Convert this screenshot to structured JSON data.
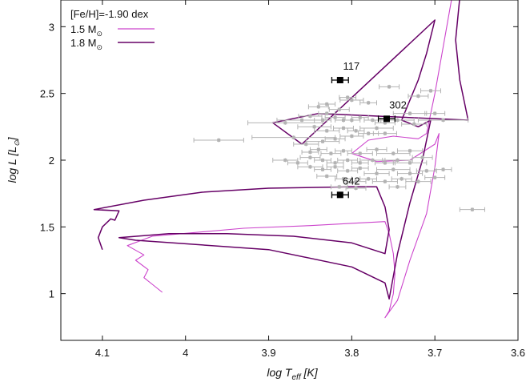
{
  "chart_data": {
    "type": "scatter",
    "title": "",
    "metallicity_label": "[Fe/H]=-1.90 dex",
    "xlabel": {
      "prefix": "log T",
      "sub": "eff",
      "suffix": " [K]"
    },
    "ylabel": {
      "text": "log L [L",
      "sun": "⊙",
      "close": "]"
    },
    "x_reversed": true,
    "xlim": [
      4.15,
      3.6
    ],
    "ylim": [
      0.65,
      3.2
    ],
    "x_ticks": [
      4.1,
      4.0,
      3.9,
      3.8,
      3.7,
      3.6
    ],
    "x_tick_labels": [
      "4.1",
      "4",
      "3.9",
      "3.8",
      "3.7",
      "3.6"
    ],
    "y_ticks": [
      1.0,
      1.5,
      2.0,
      2.5,
      3.0
    ],
    "y_tick_labels": [
      "1",
      "1.5",
      "2",
      "2.5",
      "3"
    ],
    "grid": false,
    "legend_position": "top-left",
    "colors": {
      "track_15": "#cc44cc",
      "track_18": "#660066",
      "sample": "#b3b3b3",
      "highlight": "#000000"
    },
    "series": [
      {
        "name": "1.5 M",
        "name_sub": "⊙",
        "kind": "line",
        "color": "#cc44cc",
        "points": [
          [
            4.028,
            1.01
          ],
          [
            4.04,
            1.07
          ],
          [
            4.05,
            1.12
          ],
          [
            4.045,
            1.18
          ],
          [
            4.06,
            1.25
          ],
          [
            4.05,
            1.29
          ],
          [
            4.07,
            1.36
          ],
          [
            4.04,
            1.43
          ],
          [
            3.93,
            1.49
          ],
          [
            3.85,
            1.51
          ],
          [
            3.79,
            1.53
          ],
          [
            3.76,
            1.54
          ],
          [
            3.755,
            1.45
          ],
          [
            3.75,
            1.3
          ],
          [
            3.748,
            1.15
          ],
          [
            3.75,
            1.0
          ],
          [
            3.755,
            0.87
          ],
          [
            3.76,
            0.82
          ],
          [
            3.745,
            0.95
          ],
          [
            3.73,
            1.25
          ],
          [
            3.71,
            1.6
          ],
          [
            3.7,
            1.95
          ],
          [
            3.695,
            2.2
          ],
          [
            3.7,
            2.12
          ],
          [
            3.73,
            2.0
          ],
          [
            3.77,
            1.99
          ],
          [
            3.8,
            2.05
          ],
          [
            3.78,
            2.15
          ],
          [
            3.75,
            2.18
          ],
          [
            3.72,
            2.16
          ],
          [
            3.71,
            2.2
          ],
          [
            3.7,
            2.5
          ],
          [
            3.69,
            2.85
          ],
          [
            3.68,
            3.2
          ]
        ]
      },
      {
        "name": "1.8 M",
        "name_sub": "⊙",
        "kind": "line",
        "color": "#660066",
        "points": [
          [
            4.1,
            1.33
          ],
          [
            4.105,
            1.42
          ],
          [
            4.1,
            1.5
          ],
          [
            4.09,
            1.56
          ],
          [
            4.085,
            1.55
          ],
          [
            4.08,
            1.62
          ],
          [
            4.11,
            1.63
          ],
          [
            4.05,
            1.7
          ],
          [
            3.98,
            1.76
          ],
          [
            3.9,
            1.79
          ],
          [
            3.8,
            1.8
          ],
          [
            3.77,
            1.8
          ],
          [
            3.76,
            1.65
          ],
          [
            3.755,
            1.48
          ],
          [
            3.76,
            1.3
          ],
          [
            3.8,
            1.38
          ],
          [
            3.87,
            1.43
          ],
          [
            3.95,
            1.45
          ],
          [
            4.02,
            1.45
          ],
          [
            4.08,
            1.42
          ],
          [
            4.06,
            1.4
          ],
          [
            3.9,
            1.33
          ],
          [
            3.8,
            1.2
          ],
          [
            3.76,
            1.08
          ],
          [
            3.755,
            0.96
          ],
          [
            3.745,
            1.3
          ],
          [
            3.73,
            1.68
          ],
          [
            3.715,
            2.0
          ],
          [
            3.705,
            2.3
          ],
          [
            3.72,
            2.25
          ],
          [
            3.74,
            2.3
          ],
          [
            3.73,
            2.45
          ],
          [
            3.72,
            2.6
          ],
          [
            3.71,
            2.8
          ],
          [
            3.7,
            3.05
          ],
          [
            3.86,
            2.12
          ],
          [
            3.895,
            2.28
          ],
          [
            3.84,
            2.35
          ],
          [
            3.66,
            2.3
          ],
          [
            3.67,
            2.6
          ],
          [
            3.675,
            2.9
          ],
          [
            3.67,
            3.22
          ]
        ]
      }
    ],
    "sample_points": [
      [
        3.84,
        2.4,
        0.012,
        0.015
      ],
      [
        3.83,
        2.42,
        0.01,
        0.015
      ],
      [
        3.805,
        2.47,
        0.01,
        0.015
      ],
      [
        3.8,
        2.45,
        0.014,
        0.015
      ],
      [
        3.78,
        2.43,
        0.01,
        0.015
      ],
      [
        3.815,
        2.38,
        0.012,
        0.015
      ],
      [
        3.83,
        2.35,
        0.01,
        0.015
      ],
      [
        3.85,
        2.33,
        0.014,
        0.015
      ],
      [
        3.86,
        2.3,
        0.03,
        0.015
      ],
      [
        3.88,
        2.28,
        0.045,
        0.015
      ],
      [
        3.835,
        2.3,
        0.01,
        0.015
      ],
      [
        3.82,
        2.32,
        0.012,
        0.015
      ],
      [
        3.81,
        2.3,
        0.01,
        0.015
      ],
      [
        3.8,
        2.3,
        0.01,
        0.015
      ],
      [
        3.79,
        2.32,
        0.01,
        0.015
      ],
      [
        3.775,
        2.3,
        0.01,
        0.015
      ],
      [
        3.76,
        2.28,
        0.012,
        0.015
      ],
      [
        3.745,
        2.3,
        0.02,
        0.015
      ],
      [
        3.845,
        2.25,
        0.02,
        0.015
      ],
      [
        3.83,
        2.22,
        0.015,
        0.015
      ],
      [
        3.81,
        2.24,
        0.012,
        0.015
      ],
      [
        3.795,
        2.22,
        0.01,
        0.015
      ],
      [
        3.78,
        2.2,
        0.012,
        0.015
      ],
      [
        3.77,
        2.24,
        0.02,
        0.015
      ],
      [
        3.8,
        2.18,
        0.014,
        0.015
      ],
      [
        3.82,
        2.16,
        0.012,
        0.015
      ],
      [
        3.835,
        2.14,
        0.02,
        0.015
      ],
      [
        3.855,
        2.12,
        0.015,
        0.015
      ],
      [
        3.87,
        2.17,
        0.05,
        0.015
      ],
      [
        3.96,
        2.15,
        0.03,
        0.015
      ],
      [
        3.85,
        2.06,
        0.01,
        0.015
      ],
      [
        3.84,
        2.08,
        0.01,
        0.015
      ],
      [
        3.825,
        2.05,
        0.012,
        0.015
      ],
      [
        3.81,
        2.07,
        0.01,
        0.015
      ],
      [
        3.79,
        2.05,
        0.015,
        0.015
      ],
      [
        3.77,
        2.08,
        0.012,
        0.015
      ],
      [
        3.75,
        2.05,
        0.02,
        0.015
      ],
      [
        3.73,
        2.07,
        0.015,
        0.015
      ],
      [
        3.85,
        2.02,
        0.012,
        0.015
      ],
      [
        3.835,
        2.0,
        0.01,
        0.015
      ],
      [
        3.82,
        1.98,
        0.01,
        0.015
      ],
      [
        3.805,
        2.0,
        0.012,
        0.015
      ],
      [
        3.79,
        1.98,
        0.01,
        0.015
      ],
      [
        3.775,
        2.0,
        0.015,
        0.015
      ],
      [
        3.76,
        1.98,
        0.012,
        0.015
      ],
      [
        3.745,
        2.0,
        0.018,
        0.015
      ],
      [
        3.73,
        1.98,
        0.02,
        0.015
      ],
      [
        3.715,
        2.02,
        0.012,
        0.015
      ],
      [
        3.85,
        1.95,
        0.015,
        0.015
      ],
      [
        3.835,
        1.93,
        0.01,
        0.015
      ],
      [
        3.82,
        1.95,
        0.01,
        0.015
      ],
      [
        3.805,
        1.92,
        0.012,
        0.015
      ],
      [
        3.79,
        1.94,
        0.01,
        0.015
      ],
      [
        3.77,
        1.9,
        0.015,
        0.015
      ],
      [
        3.75,
        1.93,
        0.02,
        0.015
      ],
      [
        3.73,
        1.9,
        0.015,
        0.015
      ],
      [
        3.71,
        1.92,
        0.012,
        0.015
      ],
      [
        3.69,
        1.93,
        0.01,
        0.015
      ],
      [
        3.83,
        1.88,
        0.012,
        0.015
      ],
      [
        3.81,
        1.86,
        0.01,
        0.015
      ],
      [
        3.795,
        1.84,
        0.012,
        0.015
      ],
      [
        3.78,
        1.86,
        0.01,
        0.015
      ],
      [
        3.76,
        1.84,
        0.015,
        0.015
      ],
      [
        3.74,
        1.86,
        0.012,
        0.015
      ],
      [
        3.72,
        1.84,
        0.015,
        0.015
      ],
      [
        3.7,
        1.87,
        0.012,
        0.015
      ],
      [
        3.815,
        1.8,
        0.01,
        0.015
      ],
      [
        3.795,
        1.79,
        0.012,
        0.015
      ],
      [
        3.745,
        1.8,
        0.01,
        0.015
      ],
      [
        3.725,
        2.27,
        0.015,
        0.015
      ],
      [
        3.73,
        2.35,
        0.02,
        0.015
      ],
      [
        3.7,
        2.35,
        0.012,
        0.015
      ],
      [
        3.705,
        2.52,
        0.012,
        0.015
      ],
      [
        3.72,
        2.48,
        0.012,
        0.015
      ],
      [
        3.69,
        2.3,
        0.03,
        0.015
      ],
      [
        3.755,
        2.55,
        0.012,
        0.015
      ],
      [
        3.655,
        1.63,
        0.015,
        0.015
      ],
      [
        3.76,
        2.2,
        0.014,
        0.015
      ],
      [
        3.865,
        1.98,
        0.012,
        0.015
      ],
      [
        3.88,
        2.0,
        0.015,
        0.015
      ]
    ],
    "highlighted_stars": [
      {
        "label": "117",
        "x": 3.814,
        "y": 2.6,
        "xerr": 0.01,
        "yerr": 0.015
      },
      {
        "label": "302",
        "x": 3.758,
        "y": 2.31,
        "xerr": 0.01,
        "yerr": 0.015
      },
      {
        "label": "642",
        "x": 3.814,
        "y": 1.74,
        "xerr": 0.01,
        "yerr": 0.015
      }
    ]
  }
}
